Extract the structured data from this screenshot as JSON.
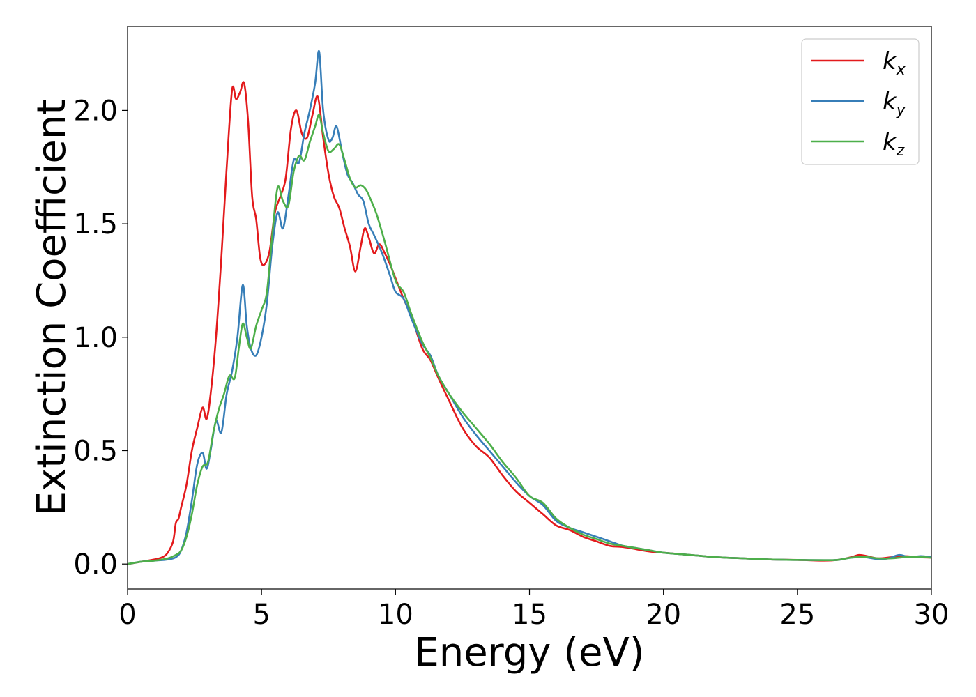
{
  "chart_data": {
    "type": "line",
    "title": "",
    "xlabel": "Energy (eV)",
    "ylabel": "Extinction Coefficient",
    "xlim": [
      0,
      30
    ],
    "ylim": [
      -0.11,
      2.37
    ],
    "xticks": [
      0,
      5,
      10,
      15,
      20,
      25,
      30
    ],
    "xtick_labels": [
      "0",
      "5",
      "10",
      "15",
      "20",
      "25",
      "30"
    ],
    "yticks": [
      0.0,
      0.5,
      1.0,
      1.5,
      2.0
    ],
    "ytick_labels": [
      "0.0",
      "0.5",
      "1.0",
      "1.5",
      "2.0"
    ],
    "grid": false,
    "legend_position": "top-right",
    "series": [
      {
        "name": "k",
        "subscript": "x",
        "color": "#e31a1c",
        "x": [
          0,
          0.5,
          1.0,
          1.3,
          1.5,
          1.7,
          1.8,
          1.9,
          2.0,
          2.2,
          2.4,
          2.6,
          2.8,
          2.95,
          3.1,
          3.3,
          3.5,
          3.7,
          3.9,
          4.05,
          4.2,
          4.35,
          4.5,
          4.65,
          4.8,
          4.95,
          5.1,
          5.3,
          5.5,
          5.7,
          5.9,
          6.1,
          6.3,
          6.5,
          6.7,
          6.9,
          7.1,
          7.3,
          7.5,
          7.7,
          7.9,
          8.1,
          8.3,
          8.5,
          8.7,
          8.85,
          9.0,
          9.2,
          9.4,
          9.6,
          9.8,
          10.0,
          10.3,
          10.6,
          11.0,
          11.3,
          11.6,
          12.0,
          12.5,
          13.0,
          13.5,
          14.0,
          14.5,
          15.0,
          15.5,
          16.0,
          16.5,
          17.0,
          17.5,
          18.0,
          18.5,
          19.0,
          19.5,
          20,
          21,
          22,
          23,
          24,
          25,
          26,
          26.5,
          27,
          27.3,
          27.6,
          28,
          28.5,
          29,
          29.5,
          30
        ],
        "y": [
          0.0,
          0.01,
          0.02,
          0.03,
          0.05,
          0.1,
          0.18,
          0.2,
          0.25,
          0.35,
          0.5,
          0.6,
          0.69,
          0.64,
          0.75,
          1.0,
          1.35,
          1.75,
          2.09,
          2.05,
          2.08,
          2.12,
          1.95,
          1.62,
          1.52,
          1.35,
          1.32,
          1.38,
          1.55,
          1.62,
          1.7,
          1.92,
          2.0,
          1.9,
          1.88,
          1.98,
          2.06,
          1.88,
          1.72,
          1.62,
          1.57,
          1.48,
          1.4,
          1.29,
          1.4,
          1.48,
          1.44,
          1.37,
          1.41,
          1.37,
          1.32,
          1.26,
          1.17,
          1.09,
          0.95,
          0.9,
          0.82,
          0.72,
          0.6,
          0.52,
          0.47,
          0.39,
          0.32,
          0.27,
          0.22,
          0.17,
          0.15,
          0.12,
          0.1,
          0.08,
          0.075,
          0.065,
          0.055,
          0.05,
          0.04,
          0.03,
          0.025,
          0.02,
          0.018,
          0.015,
          0.018,
          0.03,
          0.04,
          0.035,
          0.025,
          0.03,
          0.035,
          0.03,
          0.028
        ]
      },
      {
        "name": "k",
        "subscript": "y",
        "color": "#377eb8",
        "x": [
          0,
          0.5,
          1.0,
          1.5,
          1.8,
          2.0,
          2.2,
          2.4,
          2.6,
          2.8,
          2.95,
          3.1,
          3.3,
          3.5,
          3.7,
          3.9,
          4.1,
          4.3,
          4.45,
          4.6,
          4.8,
          5.0,
          5.2,
          5.4,
          5.6,
          5.8,
          6.0,
          6.2,
          6.4,
          6.6,
          6.8,
          7.0,
          7.15,
          7.3,
          7.5,
          7.65,
          7.8,
          8.0,
          8.2,
          8.4,
          8.6,
          8.8,
          9.0,
          9.2,
          9.5,
          9.8,
          10.0,
          10.3,
          10.6,
          11.0,
          11.3,
          11.6,
          12.0,
          12.5,
          13.0,
          13.5,
          14.0,
          14.5,
          15.0,
          15.5,
          16.0,
          16.5,
          17.0,
          17.5,
          18.0,
          18.5,
          19.0,
          19.5,
          20,
          21,
          22,
          23,
          24,
          25,
          26,
          26.5,
          27,
          27.5,
          28,
          28.4,
          28.8,
          29.2,
          29.6,
          30
        ],
        "y": [
          0.0,
          0.01,
          0.015,
          0.02,
          0.03,
          0.06,
          0.14,
          0.28,
          0.44,
          0.49,
          0.42,
          0.5,
          0.63,
          0.58,
          0.75,
          0.85,
          1.0,
          1.23,
          1.05,
          0.95,
          0.92,
          1.0,
          1.15,
          1.4,
          1.55,
          1.48,
          1.62,
          1.78,
          1.77,
          1.9,
          2.0,
          2.12,
          2.26,
          2.0,
          1.87,
          1.88,
          1.93,
          1.82,
          1.72,
          1.68,
          1.63,
          1.6,
          1.5,
          1.45,
          1.37,
          1.27,
          1.2,
          1.17,
          1.08,
          0.97,
          0.92,
          0.83,
          0.75,
          0.65,
          0.57,
          0.5,
          0.43,
          0.36,
          0.3,
          0.26,
          0.19,
          0.16,
          0.14,
          0.12,
          0.1,
          0.08,
          0.07,
          0.06,
          0.05,
          0.04,
          0.03,
          0.025,
          0.02,
          0.018,
          0.017,
          0.018,
          0.028,
          0.03,
          0.022,
          0.025,
          0.04,
          0.03,
          0.035,
          0.03
        ]
      },
      {
        "name": "k",
        "subscript": "z",
        "color": "#4daf4a",
        "x": [
          0,
          0.5,
          1.0,
          1.5,
          1.8,
          2.0,
          2.2,
          2.4,
          2.6,
          2.8,
          3.0,
          3.2,
          3.4,
          3.6,
          3.8,
          4.0,
          4.15,
          4.3,
          4.45,
          4.6,
          4.8,
          5.0,
          5.2,
          5.4,
          5.6,
          5.8,
          6.0,
          6.2,
          6.4,
          6.6,
          6.8,
          7.0,
          7.15,
          7.3,
          7.5,
          7.7,
          7.9,
          8.1,
          8.3,
          8.5,
          8.7,
          8.9,
          9.1,
          9.3,
          9.6,
          10.0,
          10.3,
          10.6,
          11.0,
          11.3,
          11.6,
          12.0,
          12.5,
          13.0,
          13.5,
          14.0,
          14.5,
          15.0,
          15.5,
          16.0,
          16.5,
          17.0,
          17.5,
          18.0,
          18.5,
          19.0,
          19.5,
          20,
          21,
          22,
          23,
          24,
          25,
          26,
          26.5,
          27,
          27.5,
          28,
          28.5,
          29,
          29.5,
          30
        ],
        "y": [
          0.0,
          0.01,
          0.015,
          0.025,
          0.04,
          0.06,
          0.12,
          0.22,
          0.35,
          0.43,
          0.45,
          0.58,
          0.68,
          0.75,
          0.83,
          0.82,
          0.95,
          1.06,
          1.0,
          0.95,
          1.05,
          1.12,
          1.2,
          1.45,
          1.66,
          1.6,
          1.58,
          1.73,
          1.8,
          1.78,
          1.86,
          1.93,
          1.98,
          1.9,
          1.82,
          1.83,
          1.85,
          1.78,
          1.7,
          1.66,
          1.67,
          1.65,
          1.6,
          1.54,
          1.42,
          1.25,
          1.2,
          1.1,
          0.98,
          0.91,
          0.83,
          0.75,
          0.67,
          0.6,
          0.53,
          0.45,
          0.38,
          0.3,
          0.27,
          0.2,
          0.16,
          0.13,
          0.11,
          0.09,
          0.08,
          0.07,
          0.06,
          0.05,
          0.04,
          0.03,
          0.025,
          0.02,
          0.018,
          0.017,
          0.018,
          0.028,
          0.032,
          0.025,
          0.025,
          0.03,
          0.032,
          0.028
        ]
      }
    ]
  }
}
